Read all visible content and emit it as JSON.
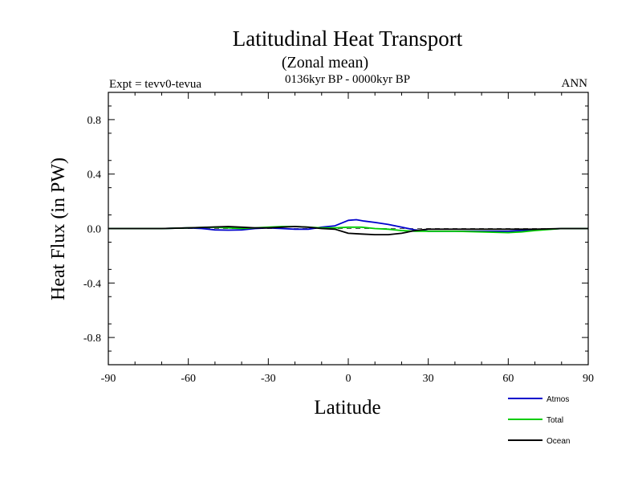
{
  "chart_data": {
    "type": "line",
    "title": "Latitudinal Heat Transport",
    "subtitle": "(Zonal mean)",
    "left_annotation": "Expt = tevv0-tevua",
    "center_annotation": "0136kyr BP - 0000kyr BP",
    "right_annotation": "ANN",
    "xlabel": "Latitude",
    "ylabel": "Heat Flux (in PW)",
    "xlim": [
      -90,
      90
    ],
    "ylim": [
      -1.0,
      1.0
    ],
    "x_ticks": [
      -90,
      -60,
      -30,
      0,
      30,
      60,
      90
    ],
    "x_tick_labels": [
      "-90",
      "-60",
      "-30",
      "0",
      "30",
      "60",
      "90"
    ],
    "y_ticks": [
      -0.8,
      -0.4,
      0.0,
      0.4,
      0.8
    ],
    "y_tick_labels": [
      "-0.8",
      "-0.4",
      "0.0",
      "0.4",
      "0.8"
    ],
    "zero_line": {
      "style": "dashed",
      "color": "#555555"
    },
    "grid": false,
    "legend_position": "bottom-right",
    "series": [
      {
        "name": "Atmos",
        "color": "#0000cc",
        "x": [
          -90,
          -80,
          -70,
          -60,
          -55,
          -50,
          -45,
          -40,
          -35,
          -30,
          -25,
          -20,
          -15,
          -10,
          -5,
          0,
          3,
          6,
          10,
          15,
          20,
          25,
          30,
          40,
          50,
          60,
          65,
          70,
          80,
          90
        ],
        "y": [
          0.0,
          0.0,
          0.0,
          0.005,
          0.0,
          -0.01,
          -0.012,
          -0.01,
          0.0,
          0.005,
          0.0,
          -0.005,
          -0.005,
          0.01,
          0.02,
          0.06,
          0.065,
          0.055,
          0.045,
          0.03,
          0.01,
          -0.01,
          -0.02,
          -0.02,
          -0.02,
          -0.02,
          -0.015,
          -0.01,
          0.0,
          0.0
        ]
      },
      {
        "name": "Total",
        "color": "#00cc00",
        "x": [
          -90,
          -80,
          -70,
          -60,
          -55,
          -50,
          -45,
          -40,
          -35,
          -30,
          -25,
          -20,
          -15,
          -10,
          -5,
          0,
          5,
          10,
          15,
          20,
          25,
          30,
          40,
          50,
          60,
          65,
          70,
          80,
          90
        ],
        "y": [
          0.0,
          0.0,
          0.0,
          0.005,
          0.008,
          0.01,
          0.005,
          0.0,
          0.005,
          0.01,
          0.015,
          0.015,
          0.01,
          0.005,
          0.005,
          0.01,
          0.01,
          0.0,
          -0.005,
          -0.015,
          -0.02,
          -0.02,
          -0.02,
          -0.025,
          -0.03,
          -0.025,
          -0.015,
          0.0,
          0.0
        ]
      },
      {
        "name": "Ocean",
        "color": "#000000",
        "x": [
          -90,
          -80,
          -70,
          -60,
          -55,
          -50,
          -45,
          -40,
          -35,
          -30,
          -25,
          -20,
          -15,
          -10,
          -5,
          0,
          5,
          10,
          15,
          20,
          25,
          30,
          40,
          50,
          60,
          65,
          70,
          80,
          90
        ],
        "y": [
          0.0,
          0.0,
          0.0,
          0.005,
          0.008,
          0.012,
          0.015,
          0.01,
          0.005,
          0.005,
          0.01,
          0.015,
          0.01,
          0.0,
          -0.005,
          -0.035,
          -0.04,
          -0.045,
          -0.045,
          -0.035,
          -0.015,
          -0.005,
          -0.005,
          -0.005,
          -0.005,
          -0.005,
          -0.005,
          0.0,
          0.0
        ]
      }
    ]
  }
}
